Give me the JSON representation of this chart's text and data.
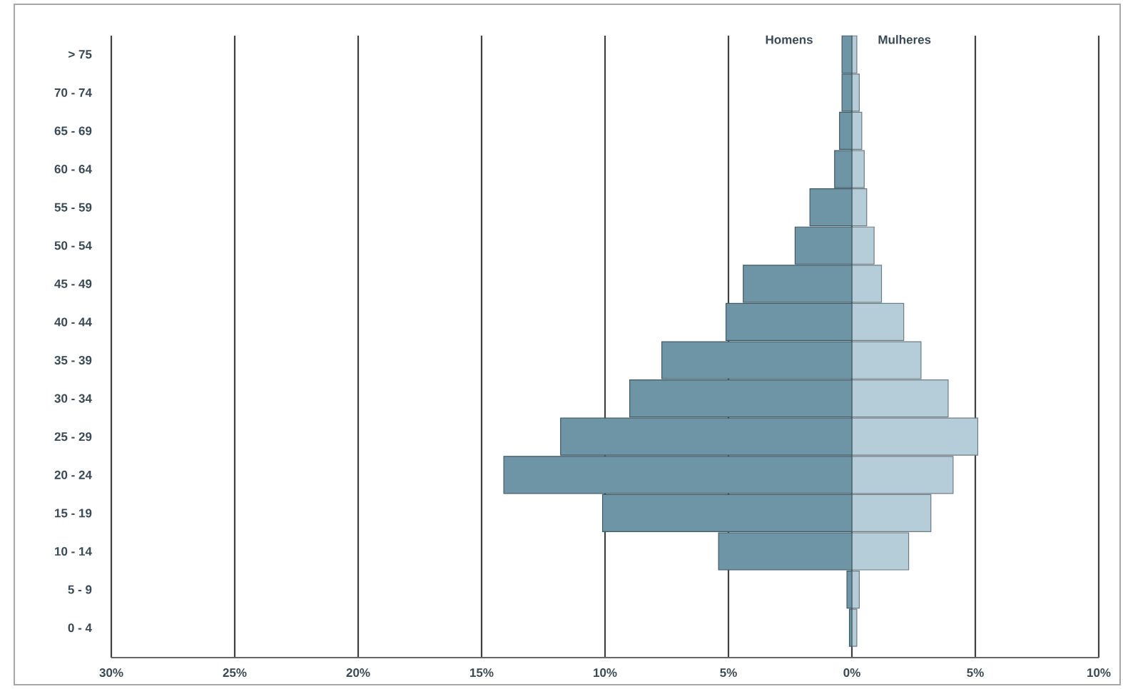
{
  "chart_data": {
    "type": "bar",
    "orientation": "horizontal",
    "categories": [
      "> 75",
      "70 - 74",
      "65 - 69",
      "60 - 64",
      "55 - 59",
      "50 - 54",
      "45 - 49",
      "40 - 44",
      "35 - 39",
      "30 - 34",
      "25 - 29",
      "20 - 24",
      "15 - 19",
      "10 - 14",
      "5 - 9",
      "0 - 4"
    ],
    "series": [
      {
        "name": "Homens",
        "color": "#6d95a6",
        "values": [
          -0.4,
          -0.4,
          -0.5,
          -0.7,
          -1.7,
          -2.3,
          -4.4,
          -5.1,
          -7.7,
          -9.0,
          -11.8,
          -14.1,
          -10.1,
          -5.4,
          -0.2,
          -0.1
        ]
      },
      {
        "name": "Mulheres",
        "color": "#b5cdd8",
        "values": [
          0.2,
          0.3,
          0.4,
          0.5,
          0.6,
          0.9,
          1.2,
          2.1,
          2.8,
          3.9,
          5.1,
          4.1,
          3.2,
          2.3,
          0.3,
          0.2
        ]
      }
    ],
    "xlim": [
      -30,
      10
    ],
    "xticks": [
      {
        "value": -30,
        "label": "30%"
      },
      {
        "value": -25,
        "label": "25%"
      },
      {
        "value": -20,
        "label": "20%"
      },
      {
        "value": -15,
        "label": "15%"
      },
      {
        "value": -10,
        "label": "10%"
      },
      {
        "value": -5,
        "label": "5%"
      },
      {
        "value": 0,
        "label": "0%"
      },
      {
        "value": 5,
        "label": "5%"
      },
      {
        "value": 10,
        "label": "10%"
      }
    ],
    "grid": "x",
    "legend": false,
    "stacked": true
  }
}
